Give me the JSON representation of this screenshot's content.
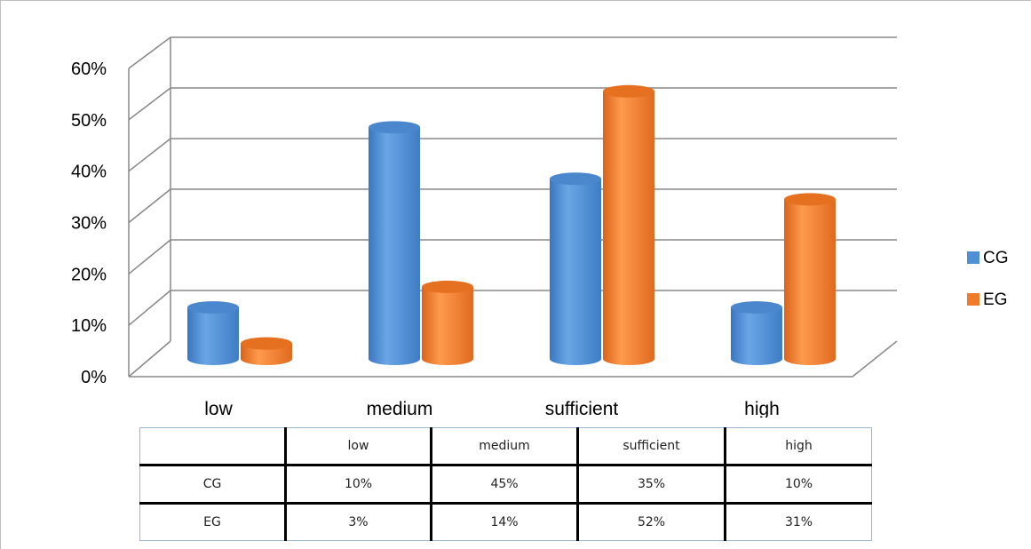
{
  "chart_data": {
    "type": "bar",
    "categories": [
      "low",
      "medium",
      "sufficient",
      "high"
    ],
    "series": [
      {
        "name": "CG",
        "values": [
          10,
          45,
          35,
          10
        ],
        "color": "#4f8fd6"
      },
      {
        "name": "EG",
        "values": [
          3,
          14,
          52,
          31
        ],
        "color": "#f07b2a"
      }
    ],
    "yticks": [
      "0%",
      "10%",
      "20%",
      "30%",
      "40%",
      "50%",
      "60%"
    ],
    "ylim": [
      0,
      60
    ],
    "grid": true,
    "legend_position": "right",
    "table": {
      "header": [
        "",
        "low",
        "medium",
        "sufficient",
        "high"
      ],
      "rows": [
        [
          "CG",
          "10%",
          "45%",
          "35%",
          "10%"
        ],
        [
          "EG",
          "3%",
          "14%",
          "52%",
          "31%"
        ]
      ]
    }
  }
}
